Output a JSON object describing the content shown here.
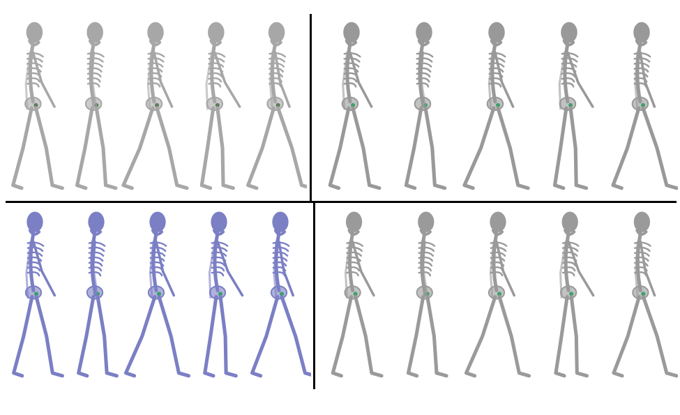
{
  "figure": {
    "panels": [
      {
        "id": "top-left",
        "tone": "gray-light",
        "color": "#a7a7a7",
        "highlight": "#5b7f5a",
        "count": 5
      },
      {
        "id": "top-right",
        "tone": "gray",
        "color": "#999999",
        "highlight": "#3fa06a",
        "count": 5
      },
      {
        "id": "bottom-left",
        "tone": "blue",
        "color": "#7b7fc4",
        "highlight": "#3aa06a",
        "count": 5
      },
      {
        "id": "bottom-right",
        "tone": "gray",
        "color": "#9a9a9a",
        "highlight": "#3fa06a",
        "count": 5
      }
    ],
    "divider_color": "#000000",
    "background": "#ffffff"
  }
}
